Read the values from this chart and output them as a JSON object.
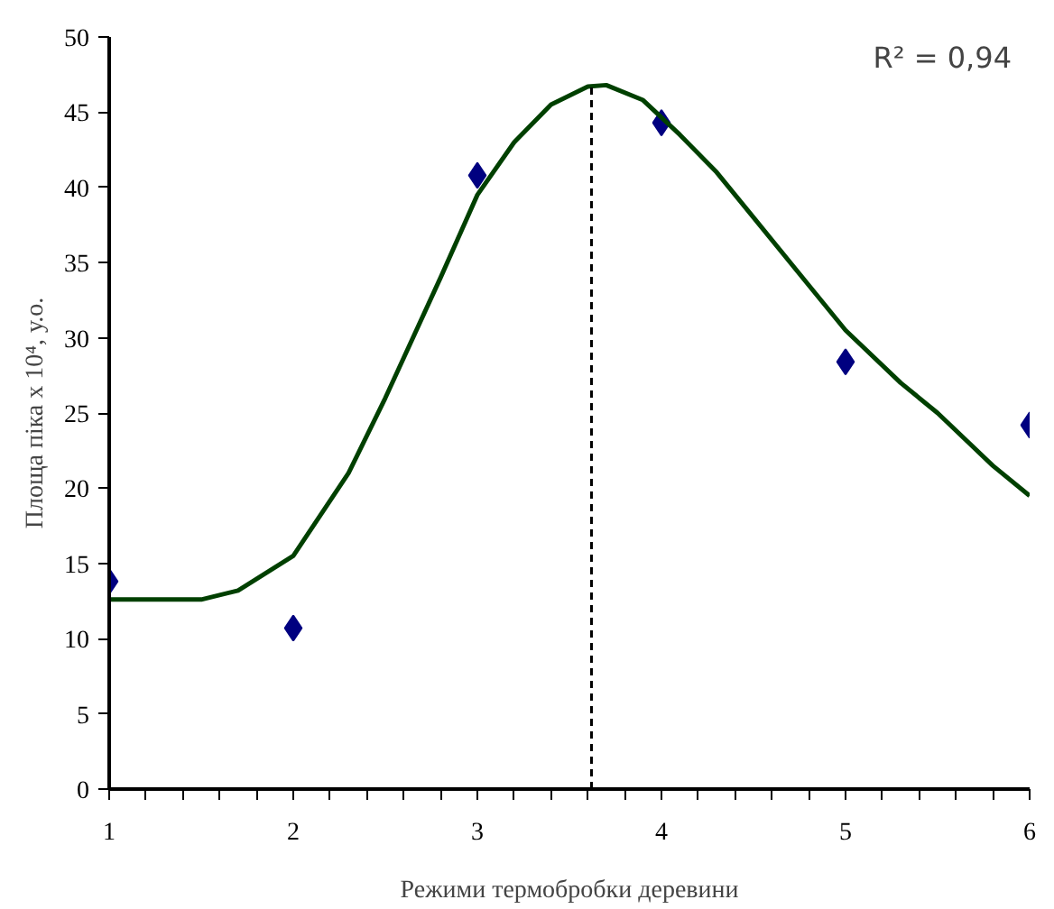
{
  "chart_data": {
    "type": "scatter",
    "xlabel": "Режими термобробки деревини",
    "ylabel": "Площа піка х 10⁴, у.о.",
    "xlim": [
      1,
      6
    ],
    "ylim": [
      0,
      50
    ],
    "xticks": [
      1,
      {
        "value": 1.2,
        "label": null
      },
      {
        "value": 1.4,
        "label": null
      },
      {
        "value": 1.6,
        "label": null
      },
      {
        "value": 1.8,
        "label": null
      },
      2,
      {
        "value": 2.2,
        "label": null
      },
      {
        "value": 2.4,
        "label": null
      },
      {
        "value": 2.6,
        "label": null
      },
      {
        "value": 2.8,
        "label": null
      },
      3,
      {
        "value": 3.2,
        "label": null
      },
      {
        "value": 3.4,
        "label": null
      },
      {
        "value": 3.6,
        "label": null
      },
      {
        "value": 3.8,
        "label": null
      },
      4,
      {
        "value": 4.2,
        "label": null
      },
      {
        "value": 4.4,
        "label": null
      },
      {
        "value": 4.6,
        "label": null
      },
      {
        "value": 4.8,
        "label": null
      },
      5,
      {
        "value": 5.2,
        "label": null
      },
      {
        "value": 5.4,
        "label": null
      },
      {
        "value": 5.6,
        "label": null
      },
      {
        "value": 5.8,
        "label": null
      },
      6
    ],
    "yticks": [
      0,
      5,
      10,
      15,
      20,
      25,
      30,
      35,
      40,
      45,
      50
    ],
    "grid": false,
    "series": [
      {
        "marker": "diamond",
        "color": "#000080",
        "x": [
          1,
          2,
          3,
          4,
          5,
          6
        ],
        "values": [
          13.8,
          10.7,
          40.8,
          44.3,
          28.4,
          24.2
        ]
      },
      {
        "type": "line",
        "line_style": "solid",
        "color": "#004000",
        "x": [
          1,
          1.5,
          1.7,
          2,
          2.3,
          2.5,
          2.8,
          3,
          3.2,
          3.4,
          3.6,
          3.7,
          3.9,
          4.1,
          4.3,
          4.5,
          4.8,
          5,
          5.3,
          5.5,
          5.8,
          6
        ],
        "values": [
          12.6,
          12.6,
          13.2,
          15.5,
          21,
          26,
          34,
          39.5,
          43,
          45.5,
          46.7,
          46.8,
          45.8,
          43.5,
          41,
          38,
          33.5,
          30.5,
          27,
          25,
          21.5,
          19.5
        ]
      }
    ],
    "ref_lines": [
      {
        "axis": "x",
        "value": 3.62,
        "color": "#000000",
        "line_style": "dashed"
      }
    ],
    "annotations": [
      "R² = 0,94"
    ]
  }
}
